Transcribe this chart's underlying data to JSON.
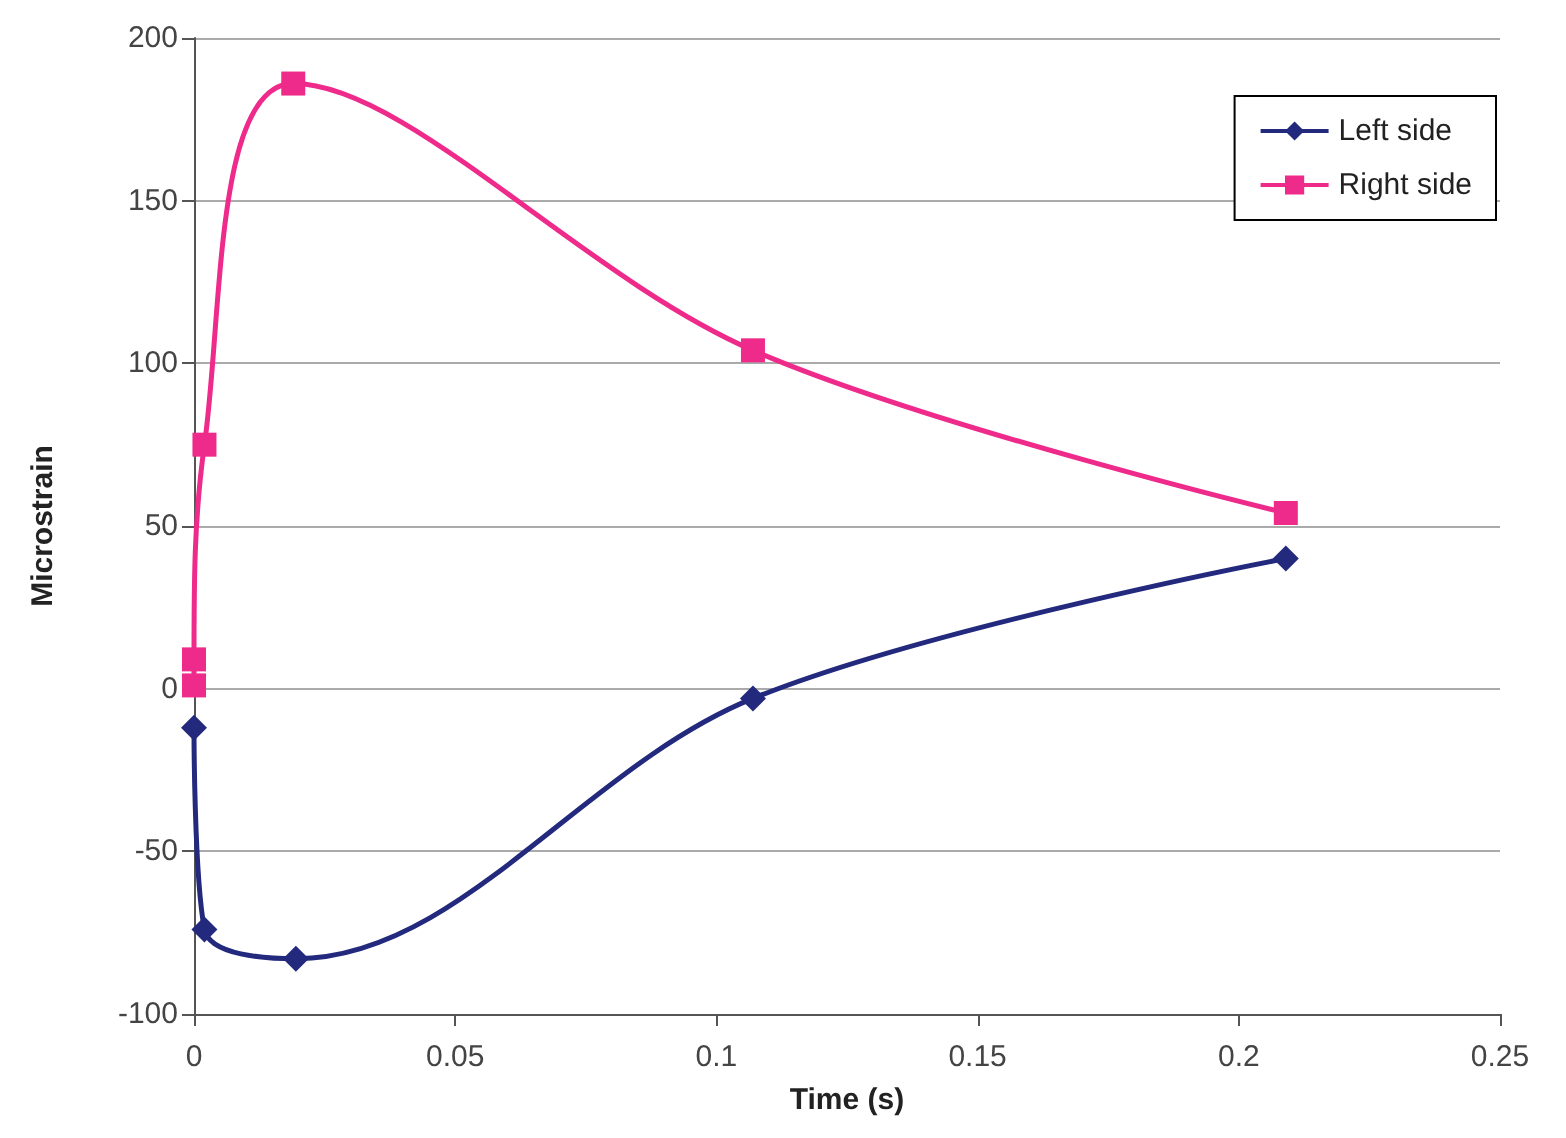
{
  "chart_data": {
    "type": "line",
    "xlabel": "Time (s)",
    "ylabel": "Microstrain",
    "xlim": [
      0,
      0.25
    ],
    "xticks": [
      0,
      0.05,
      0.1,
      0.15,
      0.2,
      0.25
    ],
    "ylim": [
      -100,
      200
    ],
    "yticks": [
      -100,
      -50,
      0,
      50,
      100,
      150,
      200
    ],
    "grid": "y",
    "legend": "top right",
    "line_style": "solid",
    "series": [
      {
        "name": "Left side",
        "color": "#232a7e",
        "marker": "diamond",
        "x": [
          0,
          0.002,
          0.0195,
          0.107,
          0.209
        ],
        "values": [
          -12,
          -74,
          -83,
          -3,
          40
        ]
      },
      {
        "name": "Right side",
        "color": "#ee2a8a",
        "marker": "square",
        "x": [
          0,
          0,
          0.002,
          0.019,
          0.107,
          0.209
        ],
        "values": [
          1,
          9,
          75,
          186,
          104,
          54
        ]
      }
    ]
  }
}
